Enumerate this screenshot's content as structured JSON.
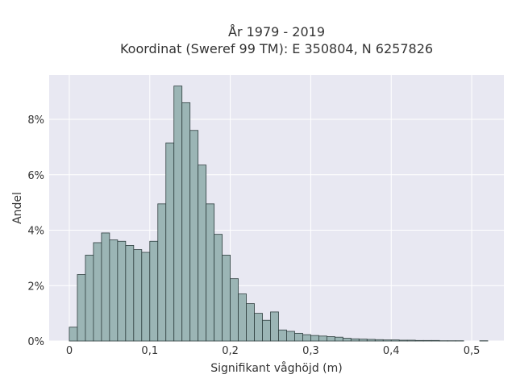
{
  "chart_data": {
    "type": "bar",
    "title": [
      "År 1979 - 2019",
      "Koordinat (Sweref 99 TM): E 350804, N 6257826"
    ],
    "xlabel": "Signifikant våghöjd (m)",
    "ylabel": "Andel",
    "bin_width": 0.01,
    "bin_start": 0.0,
    "values": [
      0.5,
      2.4,
      3.1,
      3.55,
      3.9,
      3.65,
      3.6,
      3.45,
      3.3,
      3.2,
      3.6,
      4.95,
      7.15,
      9.2,
      8.6,
      7.6,
      6.35,
      4.95,
      3.85,
      3.1,
      2.25,
      1.7,
      1.35,
      1.0,
      0.75,
      1.05,
      0.4,
      0.35,
      0.28,
      0.23,
      0.2,
      0.18,
      0.16,
      0.14,
      0.1,
      0.08,
      0.07,
      0.06,
      0.05,
      0.04,
      0.04,
      0.03,
      0.03,
      0.02,
      0.02,
      0.02,
      0.01,
      0.01,
      0.01,
      0.0,
      0.0,
      0.01
    ],
    "xlim": [
      -0.025,
      0.54
    ],
    "ylim": [
      0,
      9.6
    ],
    "x_ticks": [
      0,
      0.1,
      0.2,
      0.3,
      0.4,
      0.5
    ],
    "x_tick_labels": [
      "0",
      "0,1",
      "0,2",
      "0,3",
      "0,4",
      "0,5"
    ],
    "y_ticks": [
      0,
      2,
      4,
      6,
      8
    ],
    "y_tick_labels": [
      "0%",
      "2%",
      "4%",
      "6%",
      "8%"
    ],
    "grid": true,
    "colors": {
      "background": "#e8e8f2",
      "bar_fill": "#9bb5b5",
      "bar_stroke": "#2f3f3f",
      "grid": "#ffffff"
    }
  }
}
